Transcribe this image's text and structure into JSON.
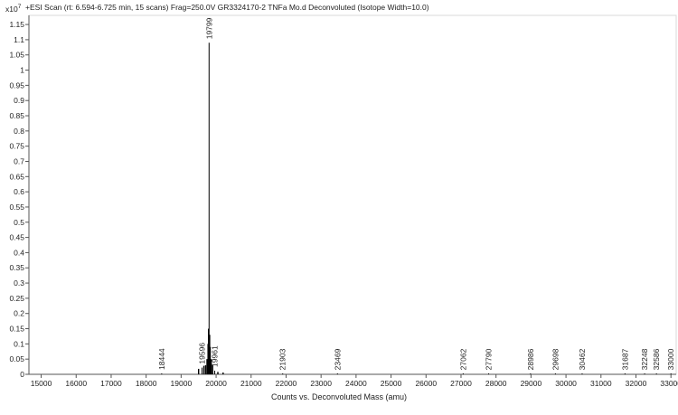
{
  "chart_data": {
    "type": "line",
    "title": "+ESI Scan (rt: 6.594-6.725 min, 15 scans) Frag=250.0V GR3324170-2 TNFa Mo.d  Deconvoluted (Isotope Width=10.0)",
    "multiplier_base": "x10",
    "multiplier_exp": "7",
    "xlabel": "Counts vs. Deconvoluted Mass (amu)",
    "ylabel": "",
    "xlim": [
      14650,
      33150
    ],
    "ylim": [
      0,
      1.18
    ],
    "x_ticks": [
      15000,
      16000,
      17000,
      18000,
      19000,
      20000,
      21000,
      22000,
      23000,
      24000,
      25000,
      26000,
      27000,
      28000,
      29000,
      30000,
      31000,
      32000,
      33000
    ],
    "x_tick_labels": [
      "15000",
      "16000",
      "17000",
      "18000",
      "19000",
      "20000",
      "21000",
      "22000",
      "23000",
      "24000",
      "25000",
      "26000",
      "27000",
      "28000",
      "29000",
      "30000",
      "31000",
      "32000",
      "33000"
    ],
    "y_ticks": [
      0,
      0.05,
      0.1,
      0.15,
      0.2,
      0.25,
      0.3,
      0.35,
      0.4,
      0.45,
      0.5,
      0.55,
      0.6,
      0.65,
      0.7,
      0.75,
      0.8,
      0.85,
      0.9,
      0.95,
      1,
      1.05,
      1.1,
      1.15
    ],
    "y_tick_labels": [
      "0",
      "0.05",
      "0.1",
      "0.15",
      "0.2",
      "0.25",
      "0.3",
      "0.35",
      "0.4",
      "0.45",
      "0.5",
      "0.55",
      "0.6",
      "0.65",
      "0.7",
      "0.75",
      "0.8",
      "0.85",
      "0.9",
      "0.95",
      "1",
      "1.05",
      "1.1",
      "1.15"
    ],
    "grid": false,
    "series": [
      {
        "color": "#000000",
        "peaks": [
          {
            "x": 18444,
            "y": 0.003,
            "label": "18444"
          },
          {
            "x": 19596,
            "y": 0.022,
            "label": "19596"
          },
          {
            "x": 19799,
            "y": 1.09,
            "label": "19799"
          },
          {
            "x": 19961,
            "y": 0.012,
            "label": "19961"
          },
          {
            "x": 21903,
            "y": 0.002,
            "label": "21903"
          },
          {
            "x": 23469,
            "y": 0.002,
            "label": "23469"
          },
          {
            "x": 27062,
            "y": 0.002,
            "label": "27062"
          },
          {
            "x": 27790,
            "y": 0.002,
            "label": "27790"
          },
          {
            "x": 28986,
            "y": 0.002,
            "label": "28986"
          },
          {
            "x": 29698,
            "y": 0.002,
            "label": "29698"
          },
          {
            "x": 30462,
            "y": 0.002,
            "label": "30462"
          },
          {
            "x": 31687,
            "y": 0.002,
            "label": "31687"
          },
          {
            "x": 32248,
            "y": 0.002,
            "label": "32248"
          },
          {
            "x": 32586,
            "y": 0.002,
            "label": "32586"
          },
          {
            "x": 33000,
            "y": 0.002,
            "label": "33000"
          }
        ],
        "minor_peaks": [
          {
            "x": 19500,
            "y": 0.018
          },
          {
            "x": 19650,
            "y": 0.028
          },
          {
            "x": 19700,
            "y": 0.03
          },
          {
            "x": 19740,
            "y": 0.05
          },
          {
            "x": 19770,
            "y": 0.1
          },
          {
            "x": 19785,
            "y": 0.15
          },
          {
            "x": 19815,
            "y": 0.13
          },
          {
            "x": 19830,
            "y": 0.09
          },
          {
            "x": 19860,
            "y": 0.05
          },
          {
            "x": 19900,
            "y": 0.03
          },
          {
            "x": 20050,
            "y": 0.008
          },
          {
            "x": 20200,
            "y": 0.006
          }
        ]
      }
    ]
  }
}
